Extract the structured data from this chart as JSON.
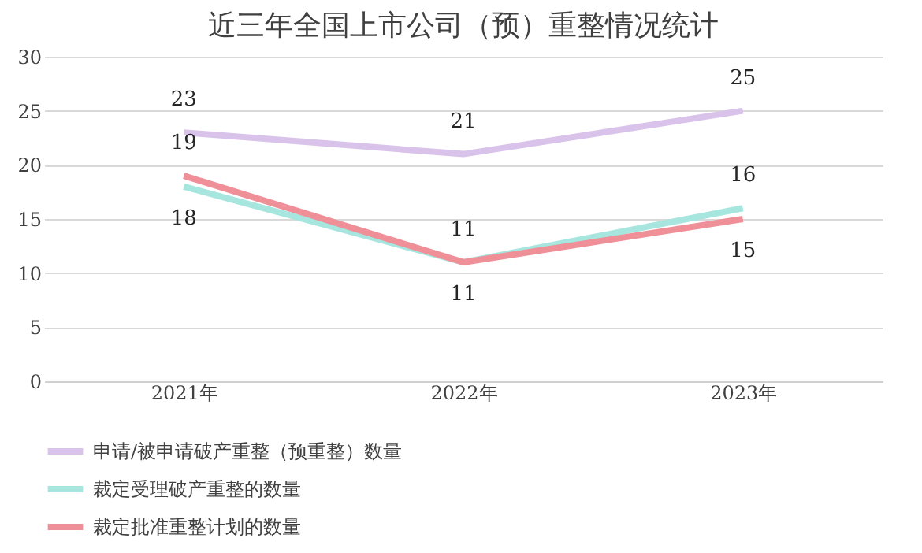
{
  "chart_data": {
    "type": "line",
    "title": "近三年全国上市公司（预）重整情况统计",
    "categories": [
      "2021年",
      "2022年",
      "2023年"
    ],
    "series": [
      {
        "name": "申请/被申请破产重整（预重整）数量",
        "color": "#d9c3ea",
        "values": [
          23,
          21,
          25
        ]
      },
      {
        "name": "裁定受理破产重整的数量",
        "color": "#a6e6df",
        "values": [
          18,
          11,
          16
        ]
      },
      {
        "name": "裁定批准重整计划的数量",
        "color": "#ef8f98",
        "values": [
          19,
          11,
          15
        ]
      }
    ],
    "ylim": [
      0,
      30
    ],
    "yticks": [
      0,
      5,
      10,
      15,
      20,
      25,
      30
    ],
    "grid": "y",
    "legend": "bottom",
    "data_labels": true,
    "marker": "none",
    "line_style": "solid"
  }
}
